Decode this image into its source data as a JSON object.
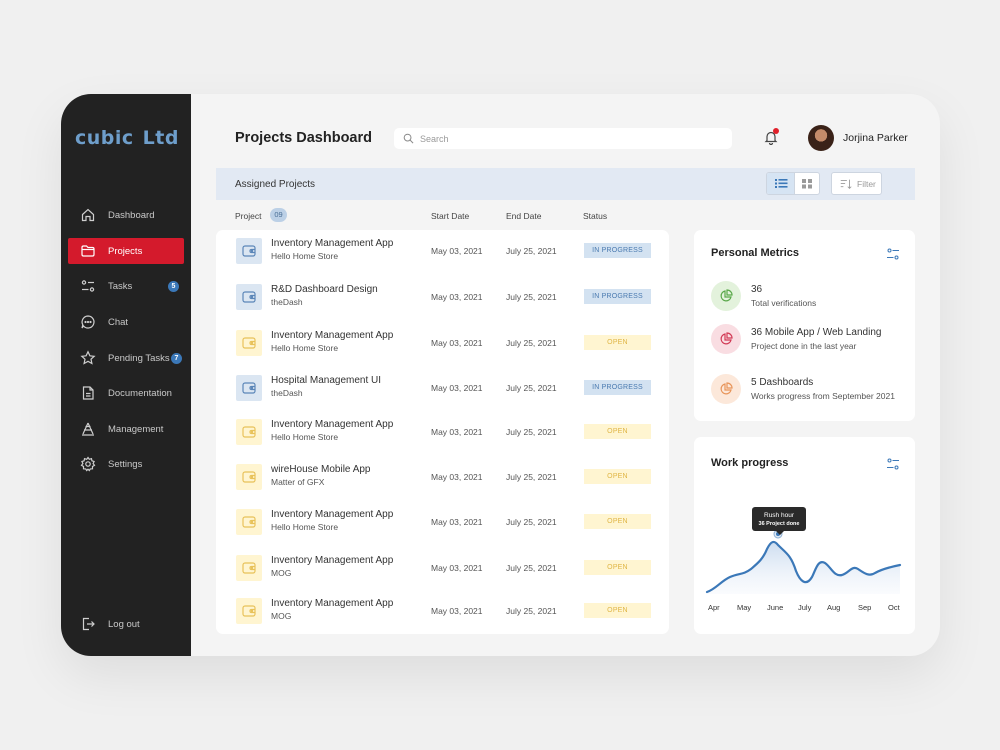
{
  "brand": {
    "word1": "cubic",
    "word2": "Ltd"
  },
  "sidebar": {
    "items": [
      {
        "label": "Dashboard",
        "icon": "home-icon"
      },
      {
        "label": "Projects",
        "icon": "folder-icon",
        "active": true
      },
      {
        "label": "Tasks",
        "icon": "tasks-icon",
        "badge": "5"
      },
      {
        "label": "Chat",
        "icon": "chat-icon"
      },
      {
        "label": "Pending Tasks",
        "icon": "star-icon",
        "badge": "7"
      },
      {
        "label": "Documentation",
        "icon": "document-icon"
      },
      {
        "label": "Management",
        "icon": "management-icon"
      },
      {
        "label": "Settings",
        "icon": "gear-icon"
      }
    ],
    "logout": "Log out"
  },
  "header": {
    "title": "Projects Dashboard",
    "search_placeholder": "Search",
    "user_name": "Jorjina Parker"
  },
  "assigned": {
    "title": "Assigned Projects",
    "filter_label": "Filter",
    "columns": {
      "project": "Project",
      "count": "09",
      "start": "Start Date",
      "end": "End Date",
      "status": "Status"
    }
  },
  "projects": [
    {
      "name": "Inventory Management App",
      "client": "Hello Home Store",
      "start": "May 03, 2021",
      "end": "July 25, 2021",
      "status": "IN PROGRESS",
      "kind": "prog"
    },
    {
      "name": "R&D Dashboard Design",
      "client": "theDash",
      "start": "May 03, 2021",
      "end": "July 25, 2021",
      "status": "IN PROGRESS",
      "kind": "prog"
    },
    {
      "name": "Inventory Management App",
      "client": "Hello Home Store",
      "start": "May 03, 2021",
      "end": "July 25, 2021",
      "status": "OPEN",
      "kind": "open"
    },
    {
      "name": "Hospital Management UI",
      "client": "theDash",
      "start": "May 03, 2021",
      "end": "July 25, 2021",
      "status": "IN PROGRESS",
      "kind": "prog"
    },
    {
      "name": "Inventory Management App",
      "client": "Hello Home Store",
      "start": "May 03, 2021",
      "end": "July 25, 2021",
      "status": "OPEN",
      "kind": "open"
    },
    {
      "name": "wireHouse Mobile App",
      "client": "Matter of GFX",
      "start": "May 03, 2021",
      "end": "July 25, 2021",
      "status": "OPEN",
      "kind": "open"
    },
    {
      "name": "Inventory Management App",
      "client": "Hello Home Store",
      "start": "May 03, 2021",
      "end": "July 25, 2021",
      "status": "OPEN",
      "kind": "open"
    },
    {
      "name": "Inventory Management App",
      "client": "MOG",
      "start": "May 03, 2021",
      "end": "July 25, 2021",
      "status": "OPEN",
      "kind": "open"
    },
    {
      "name": "Inventory Management App",
      "client": "MOG",
      "start": "May 03, 2021",
      "end": "July 25, 2021",
      "status": "OPEN",
      "kind": "open"
    }
  ],
  "metrics": {
    "title": "Personal Metrics",
    "items": [
      {
        "title": "36",
        "subtitle": "Total verifications",
        "color": "#5aa84a",
        "bg": "#e3f2dc"
      },
      {
        "title": "36 Mobile App / Web Landing",
        "subtitle": "Project done in the last year",
        "color": "#d23a55",
        "bg": "#f9dde2"
      },
      {
        "title": "5 Dashboards",
        "subtitle": "Works progress from September 2021",
        "color": "#e8955a",
        "bg": "#fce8da"
      }
    ]
  },
  "work_progress": {
    "title": "Work progress",
    "tooltip_title": "Rush hour",
    "tooltip_sub": "36 Project done"
  },
  "chart_data": {
    "type": "area",
    "categories": [
      "Apr",
      "May",
      "June",
      "July",
      "Aug",
      "Sep",
      "Oct"
    ],
    "highlight": {
      "category": "June",
      "label": "Rush hour",
      "value_label": "36 Project done"
    },
    "line_color": "#3b78b8"
  }
}
